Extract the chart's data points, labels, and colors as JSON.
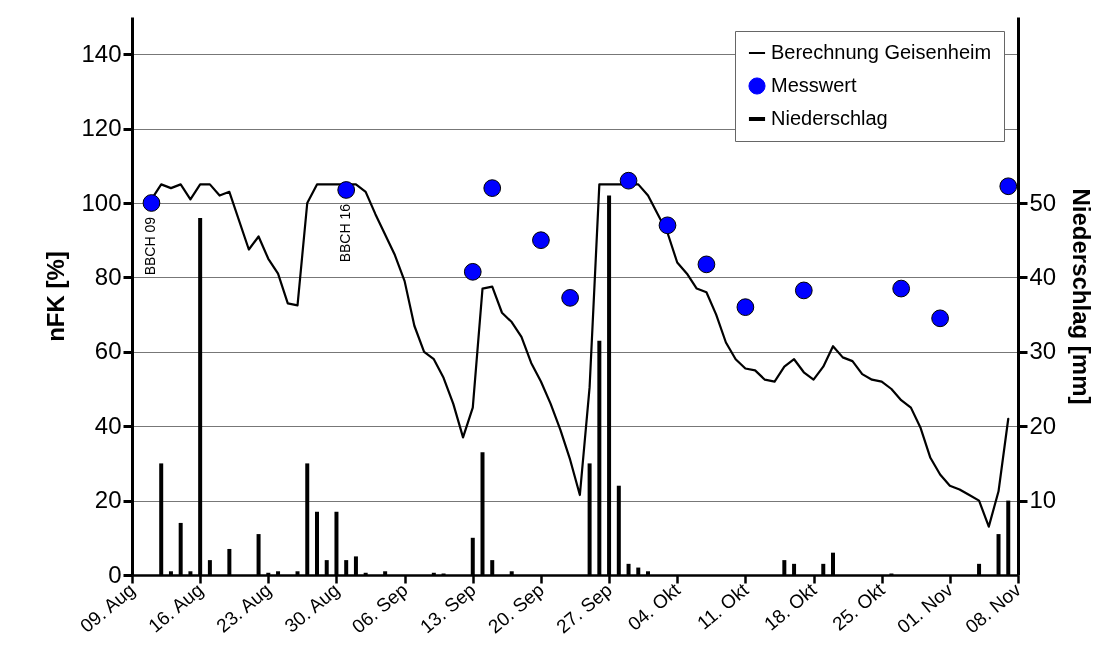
{
  "chart_data": {
    "type": "line",
    "ylabel": "nFK [%]",
    "y2label": "Niederschlag [mm]",
    "xlim": [
      "--08-09",
      "--11-08"
    ],
    "xticks": [
      {
        "value": "--08-09",
        "label": "09. Aug"
      },
      {
        "value": "--08-16",
        "label": "16. Aug"
      },
      {
        "value": "--08-23",
        "label": "23. Aug"
      },
      {
        "value": "--08-30",
        "label": "30. Aug"
      },
      {
        "value": "--09-06",
        "label": "06. Sep"
      },
      {
        "value": "--09-13",
        "label": "13. Sep"
      },
      {
        "value": "--09-20",
        "label": "20. Sep"
      },
      {
        "value": "--09-27",
        "label": "27. Sep"
      },
      {
        "value": "--10-04",
        "label": "04. Okt"
      },
      {
        "value": "--10-11",
        "label": "11. Okt"
      },
      {
        "value": "--10-18",
        "label": "18. Okt"
      },
      {
        "value": "--10-25",
        "label": "25. Okt"
      },
      {
        "value": "--11-01",
        "label": "01. Nov"
      },
      {
        "value": "--11-08",
        "label": "08. Nov"
      }
    ],
    "ylim": [
      0,
      150
    ],
    "yticks": [
      0,
      20,
      40,
      60,
      80,
      100,
      120,
      140
    ],
    "y2lim": [
      0,
      75
    ],
    "y2ticks": [
      10,
      20,
      30,
      40,
      50
    ],
    "grid": "y",
    "legend": "top right",
    "line_style": "solid",
    "series": [
      {
        "name": "Berechnung Geisenheim",
        "color": "#000000",
        "x": [
          "--08-11",
          "--08-12",
          "--08-13",
          "--08-14",
          "--08-15",
          "--08-16",
          "--08-17",
          "--08-18",
          "--08-19",
          "--08-21",
          "--08-22",
          "--08-23",
          "--08-24",
          "--08-25",
          "--08-26",
          "--08-27",
          "--08-28",
          "--09-01",
          "--09-02",
          "--09-03",
          "--09-05",
          "--09-06",
          "--09-07",
          "--09-08",
          "--09-09",
          "--09-10",
          "--09-11",
          "--09-12",
          "--09-13",
          "--09-14",
          "--09-15",
          "--09-16",
          "--09-17",
          "--09-18",
          "--09-19",
          "--09-20",
          "--09-21",
          "--09-22",
          "--09-23",
          "--09-24",
          "--09-25",
          "--09-26",
          "--09-30",
          "--10-01",
          "--10-02",
          "--10-03",
          "--10-04",
          "--10-05",
          "--10-06",
          "--10-07",
          "--10-08",
          "--10-09",
          "--10-10",
          "--10-11",
          "--10-12",
          "--10-13",
          "--10-14",
          "--10-15",
          "--10-16",
          "--10-17",
          "--10-18",
          "--10-19",
          "--10-20",
          "--10-21",
          "--10-22",
          "--10-23",
          "--10-24",
          "--10-25",
          "--10-26",
          "--10-27",
          "--10-28",
          "--10-29",
          "--10-30",
          "--10-31",
          "--11-01",
          "--11-02",
          "--11-03",
          "--11-04",
          "--11-05",
          "--11-06",
          "--11-07"
        ],
        "values": [
          101,
          105,
          104,
          105,
          101,
          105,
          105,
          102,
          103,
          87.5,
          91,
          85,
          81,
          73,
          72.5,
          100,
          105,
          105,
          103,
          97,
          86,
          79,
          67,
          60,
          58,
          53,
          46,
          37,
          45,
          77,
          77.5,
          70.5,
          68,
          64,
          57,
          52,
          46,
          39,
          31,
          21.5,
          50.5,
          105,
          105,
          102,
          97,
          92,
          84,
          81,
          77,
          76,
          70,
          62.5,
          58,
          55.5,
          55,
          52.5,
          52,
          56,
          58,
          54.5,
          52.5,
          56,
          61.5,
          58.5,
          57.5,
          54,
          52.5,
          52,
          50,
          47,
          45,
          39.5,
          31.5,
          27,
          24,
          23,
          21.5,
          20,
          13,
          22.5,
          42
        ]
      },
      {
        "name": "Messwert",
        "type": "scatter",
        "marker": "circle",
        "color": "#0000ff",
        "x": [
          "--08-11",
          "--08-31",
          "--09-13",
          "--09-15",
          "--09-20",
          "--09-23",
          "--09-29",
          "--10-03",
          "--10-07",
          "--10-11",
          "--10-17",
          "--10-27",
          "--10-31",
          "--11-07"
        ],
        "values": [
          100,
          103.5,
          81.5,
          104,
          90,
          74.5,
          106,
          94,
          83.5,
          72,
          76.5,
          77,
          69,
          104.5
        ]
      },
      {
        "name": "Niederschlag",
        "type": "bar",
        "axis": "y2",
        "color": "#000000",
        "x": [
          "--08-12",
          "--08-13",
          "--08-14",
          "--08-15",
          "--08-16",
          "--08-17",
          "--08-19",
          "--08-22",
          "--08-23",
          "--08-24",
          "--08-26",
          "--08-27",
          "--08-28",
          "--08-29",
          "--08-30",
          "--08-31",
          "--09-01",
          "--09-02",
          "--09-04",
          "--09-09",
          "--09-10",
          "--09-13",
          "--09-14",
          "--09-15",
          "--09-17",
          "--09-25",
          "--09-26",
          "--09-27",
          "--09-28",
          "--09-29",
          "--09-30",
          "--10-01",
          "--10-15",
          "--10-16",
          "--10-19",
          "--10-20",
          "--10-26",
          "--11-04",
          "--11-06",
          "--11-07"
        ],
        "values": [
          15,
          0.5,
          7,
          0.5,
          48,
          2,
          3.5,
          5.5,
          0.3,
          0.5,
          0.5,
          15,
          8.5,
          2,
          8.5,
          2,
          2.5,
          0.3,
          0.5,
          0.3,
          0.2,
          5,
          16.5,
          2,
          0.5,
          15,
          31.5,
          51,
          12,
          1.5,
          1,
          0.5,
          2,
          1.5,
          1.5,
          3,
          0.2,
          1.5,
          5.5,
          10
        ]
      }
    ],
    "annotations": [
      {
        "text": "BBCH 09",
        "x": "--08-11",
        "y": 100
      },
      {
        "text": "BBCH 16",
        "x": "--08-31",
        "y": 103.5
      }
    ]
  }
}
